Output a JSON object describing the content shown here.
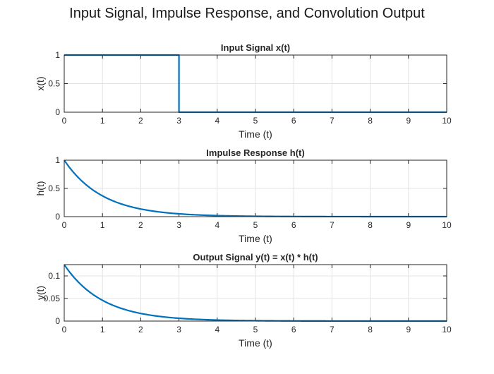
{
  "figure_title": "Input Signal, Impulse Response, and Convolution Output",
  "chart_data": [
    {
      "type": "line",
      "title": "Input Signal x(t)",
      "xlabel": "Time (t)",
      "ylabel": "x(t)",
      "xlim": [
        0,
        10
      ],
      "ylim": [
        0,
        1
      ],
      "xticks": [
        "0",
        "1",
        "2",
        "3",
        "4",
        "5",
        "6",
        "7",
        "8",
        "9",
        "10"
      ],
      "yticks": [
        "0",
        "0.5",
        "1"
      ],
      "grid": true,
      "line_color": "#0072BD",
      "series": [
        {
          "kind": "rect",
          "x": [
            0,
            3,
            3,
            10
          ],
          "y": [
            1,
            1,
            0,
            0
          ]
        }
      ]
    },
    {
      "type": "line",
      "title": "Impulse Response h(t)",
      "xlabel": "Time (t)",
      "ylabel": "h(t)",
      "xlim": [
        0,
        10
      ],
      "ylim": [
        0,
        1
      ],
      "xticks": [
        "0",
        "1",
        "2",
        "3",
        "4",
        "5",
        "6",
        "7",
        "8",
        "9",
        "10"
      ],
      "yticks": [
        "0",
        "0.5",
        "1"
      ],
      "grid": true,
      "line_color": "#0072BD",
      "series": [
        {
          "kind": "exp",
          "amplitude": 1,
          "rate": 1,
          "x_start": 0,
          "x_end": 10
        }
      ]
    },
    {
      "type": "line",
      "title": "Output Signal y(t) = x(t) * h(t)",
      "xlabel": "Time (t)",
      "ylabel": "y(t)",
      "xlim": [
        0,
        10
      ],
      "ylim": [
        0,
        0.125
      ],
      "xticks": [
        "0",
        "1",
        "2",
        "3",
        "4",
        "5",
        "6",
        "7",
        "8",
        "9",
        "10"
      ],
      "yticks": [
        "0",
        "0.05",
        "0.1"
      ],
      "ytick_values": [
        0,
        0.05,
        0.1
      ],
      "grid": true,
      "line_color": "#0072BD",
      "series": [
        {
          "kind": "exp",
          "amplitude": 0.125,
          "rate": 1,
          "x_start": 0,
          "x_end": 10
        }
      ]
    }
  ]
}
